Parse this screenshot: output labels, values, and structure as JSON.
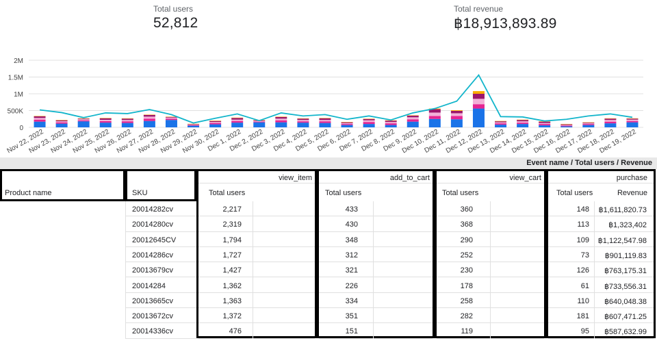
{
  "scorecards": {
    "users": {
      "label": "Total users",
      "value": "52,812"
    },
    "revenue": {
      "label": "Total revenue",
      "value": "฿18,913,893.89"
    }
  },
  "chart_data": {
    "type": "bar",
    "stacked": true,
    "categories": [
      "Nov 22, 2022",
      "Nov 23, 2022",
      "Nov 24, 2022",
      "Nov 25, 2022",
      "Nov 26, 2022",
      "Nov 27, 2022",
      "Nov 28, 2022",
      "Nov 29, 2022",
      "Nov 30, 2022",
      "Dec 1, 2022",
      "Dec 2, 2022",
      "Dec 3, 2022",
      "Dec 4, 2022",
      "Dec 5, 2022",
      "Dec 6, 2022",
      "Dec 7, 2022",
      "Dec 8, 2022",
      "Dec 9, 2022",
      "Dec 10, 2022",
      "Dec 11, 2022",
      "Dec 12, 2022",
      "Dec 13, 2022",
      "Dec 14, 2022",
      "Dec 15, 2022",
      "Dec 16, 2022",
      "Dec 17, 2022",
      "Dec 18, 2022",
      "Dec 19, 2022"
    ],
    "yticks": [
      "0",
      "500K",
      "1M",
      "1.5M",
      "2M"
    ],
    "ylim": [
      0,
      2000000
    ],
    "series": [
      {
        "values": [
          170000,
          110000,
          180000,
          140000,
          130000,
          190000,
          220000,
          50000,
          90000,
          140000,
          150000,
          150000,
          140000,
          130000,
          70000,
          100000,
          70000,
          170000,
          250000,
          240000,
          560000,
          80000,
          100000,
          60000,
          30000,
          70000,
          120000,
          150000
        ]
      },
      {
        "values": [
          60000,
          40000,
          30000,
          45000,
          50000,
          70000,
          40000,
          20000,
          40000,
          50000,
          20000,
          60000,
          40000,
          50000,
          30000,
          60000,
          50000,
          70000,
          90000,
          100000,
          130000,
          40000,
          40000,
          40000,
          20000,
          30000,
          50000,
          40000
        ]
      },
      {
        "values": [
          50000,
          30000,
          30000,
          40000,
          40000,
          60000,
          30000,
          15000,
          30000,
          40000,
          20000,
          50000,
          40000,
          40000,
          25000,
          50000,
          40000,
          60000,
          100000,
          80000,
          160000,
          30000,
          40000,
          30000,
          20000,
          20000,
          50000,
          40000
        ]
      },
      {
        "values": [
          50000,
          30000,
          20000,
          45000,
          40000,
          50000,
          20000,
          15000,
          30000,
          50000,
          20000,
          50000,
          40000,
          50000,
          25000,
          40000,
          40000,
          50000,
          100000,
          70000,
          150000,
          30000,
          40000,
          40000,
          20000,
          20000,
          40000,
          30000
        ]
      },
      {
        "values": [
          10000,
          10000,
          10000,
          10000,
          10000,
          10000,
          10000,
          5000,
          10000,
          10000,
          10000,
          10000,
          10000,
          10000,
          10000,
          10000,
          10000,
          10000,
          20000,
          20000,
          80000,
          10000,
          10000,
          10000,
          10000,
          10000,
          10000,
          10000
        ]
      }
    ],
    "line": {
      "values": [
        520000,
        440000,
        290000,
        430000,
        410000,
        530000,
        380000,
        130000,
        270000,
        400000,
        200000,
        430000,
        340000,
        380000,
        240000,
        340000,
        220000,
        430000,
        560000,
        780000,
        1560000,
        320000,
        310000,
        190000,
        240000,
        340000,
        400000,
        300000
      ]
    },
    "colors": {
      "s0": "#1a73e8",
      "s1": "#e52592",
      "s2": "#f3b0d8",
      "s3": "#9c166b",
      "s4": "#f9ab00",
      "line": "#12b5cb"
    },
    "grid": true
  },
  "table": {
    "header_bar": "Event name / Total users / Revenue",
    "col_product": "Product name",
    "col_sku": "SKU",
    "events": {
      "view_item": {
        "name": "view_item",
        "metric": "Total users"
      },
      "add_to_cart": {
        "name": "add_to_cart",
        "metric": "Total users"
      },
      "view_cart": {
        "name": "view_cart",
        "metric": "Total users"
      },
      "purchase": {
        "name": "purchase",
        "metric": "Total users",
        "metric2": "Revenue"
      }
    },
    "rows": [
      {
        "sku": "20014282cv",
        "view_item": "2,217",
        "add_to_cart": "433",
        "view_cart": "360",
        "purchase_users": "148",
        "revenue": "฿1,611,820.73"
      },
      {
        "sku": "20014280cv",
        "view_item": "2,319",
        "add_to_cart": "430",
        "view_cart": "368",
        "purchase_users": "113",
        "revenue": "฿1,323,402"
      },
      {
        "sku": "20012645CV",
        "view_item": "1,794",
        "add_to_cart": "348",
        "view_cart": "290",
        "purchase_users": "109",
        "revenue": "฿1,122,547.98"
      },
      {
        "sku": "20014286cv",
        "view_item": "1,727",
        "add_to_cart": "312",
        "view_cart": "252",
        "purchase_users": "73",
        "revenue": "฿901,119.83"
      },
      {
        "sku": "20013679cv",
        "view_item": "1,427",
        "add_to_cart": "321",
        "view_cart": "230",
        "purchase_users": "126",
        "revenue": "฿763,175.31"
      },
      {
        "sku": "20014284",
        "view_item": "1,362",
        "add_to_cart": "226",
        "view_cart": "178",
        "purchase_users": "61",
        "revenue": "฿733,556.31"
      },
      {
        "sku": "20013665cv",
        "view_item": "1,363",
        "add_to_cart": "334",
        "view_cart": "258",
        "purchase_users": "110",
        "revenue": "฿640,048.38"
      },
      {
        "sku": "20013672cv",
        "view_item": "1,372",
        "add_to_cart": "351",
        "view_cart": "282",
        "purchase_users": "181",
        "revenue": "฿607,471.25"
      },
      {
        "sku": "20014336cv",
        "view_item": "476",
        "add_to_cart": "151",
        "view_cart": "119",
        "purchase_users": "95",
        "revenue": "฿587,632.99"
      }
    ]
  }
}
